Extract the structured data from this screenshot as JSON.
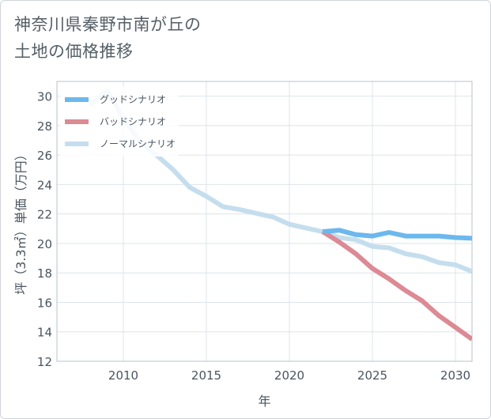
{
  "title_lines": [
    "神奈川県秦野市南が丘の",
    "土地の価格推移"
  ],
  "chart_data": {
    "type": "line",
    "title": "神奈川県秦野市南が丘の土地の価格推移",
    "xlabel": "年",
    "ylabel": "坪（3.3㎡）単価（万円）",
    "xlim": [
      2006,
      2031
    ],
    "ylim": [
      12,
      31
    ],
    "xticks": [
      2010,
      2015,
      2020,
      2025,
      2030
    ],
    "yticks": [
      12,
      14,
      16,
      18,
      20,
      22,
      24,
      26,
      28,
      30
    ],
    "grid": true,
    "legend_position": "top-left",
    "series": [
      {
        "name": "グッドシナリオ",
        "color": "#6cb8ee",
        "x": [
          2022,
          2023,
          2024,
          2025,
          2026,
          2027,
          2028,
          2029,
          2030,
          2031
        ],
        "values": [
          20.8,
          20.9,
          20.6,
          20.5,
          20.75,
          20.5,
          20.5,
          20.5,
          20.4,
          20.35
        ]
      },
      {
        "name": "バッドシナリオ",
        "color": "#dc8a94",
        "x": [
          2022,
          2023,
          2024,
          2025,
          2026,
          2027,
          2028,
          2029,
          2030,
          2031
        ],
        "values": [
          20.8,
          20.1,
          19.3,
          18.3,
          17.6,
          16.8,
          16.1,
          15.1,
          14.3,
          13.5
        ]
      },
      {
        "name": "ノーマルシナリオ",
        "color": "#c5deee",
        "x": [
          2008,
          2009,
          2010,
          2011,
          2012,
          2013,
          2014,
          2015,
          2016,
          2017,
          2018,
          2019,
          2020,
          2021,
          2022,
          2023,
          2024,
          2025,
          2026,
          2027,
          2028,
          2029,
          2030,
          2031
        ],
        "values": [
          29.4,
          30.4,
          28.5,
          26.9,
          26.0,
          25.0,
          23.8,
          23.2,
          22.5,
          22.3,
          22.05,
          21.8,
          21.3,
          21.05,
          20.8,
          20.4,
          20.25,
          19.8,
          19.7,
          19.3,
          19.1,
          18.7,
          18.55,
          18.1
        ]
      }
    ]
  }
}
